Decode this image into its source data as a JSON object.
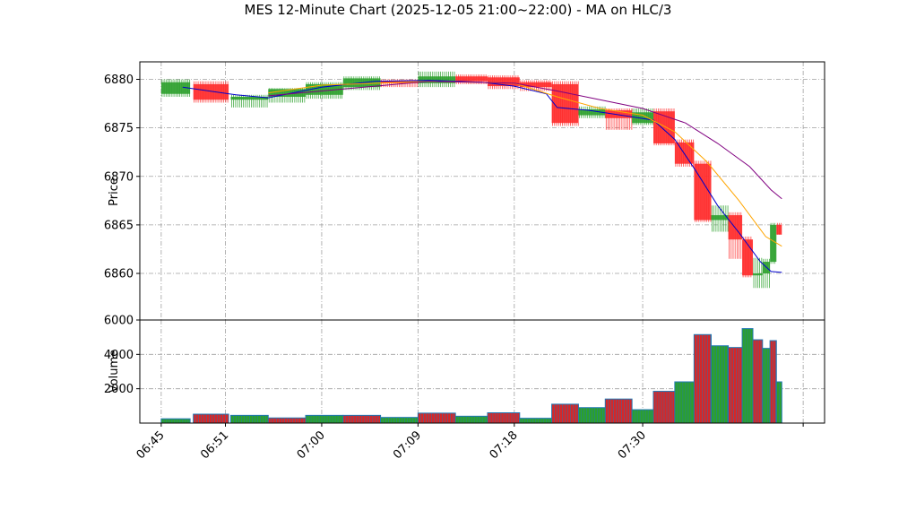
{
  "chart_data": {
    "type": "candlestick",
    "title": "MES 12-Minute Chart (2025-12-05 21:00~22:00) - MA on HLC/3",
    "price_panel": {
      "ylabel": "Price",
      "ylim": [
        6855.2,
        6881.8
      ],
      "yticks": [
        6860,
        6865,
        6870,
        6875,
        6880
      ],
      "grid": true
    },
    "volume_panel": {
      "ylabel": "Volume",
      "ylim": [
        0,
        6000
      ],
      "yticks": [
        2000,
        4000,
        6000
      ],
      "grid": true
    },
    "x_axis": {
      "range": [
        "06:43",
        "07:47"
      ],
      "ticks": [
        "06:45",
        "06:51",
        "07:00",
        "07:09",
        "07:18",
        "07:30"
      ],
      "last_tick_unlabeled": "07:45"
    },
    "colors": {
      "up": "#2ca02c",
      "down": "#ff2a2a",
      "ma_fast": "#0000cc",
      "ma_mid": "#ffa500",
      "ma_slow": "#800080",
      "volume_edge": "#1f77b4",
      "volume_fill": [
        "#2ca02c",
        "#d62728"
      ]
    },
    "bars": [
      {
        "t": "06:45",
        "dur": 2.7,
        "open": 6878.5,
        "high": 6880.0,
        "low": 6878.2,
        "close": 6879.7,
        "volume": 250
      },
      {
        "t": "06:48",
        "dur": 3.3,
        "open": 6879.5,
        "high": 6879.8,
        "low": 6877.6,
        "close": 6877.9,
        "volume": 520
      },
      {
        "t": "06:51.5",
        "dur": 3.5,
        "open": 6877.9,
        "high": 6878.4,
        "low": 6877.1,
        "close": 6878.2,
        "volume": 450
      },
      {
        "t": "06:55",
        "dur": 3.5,
        "open": 6878.2,
        "high": 6879.1,
        "low": 6877.6,
        "close": 6879.0,
        "volume": 300
      },
      {
        "t": "06:58.5",
        "dur": 3.5,
        "open": 6878.4,
        "high": 6879.7,
        "low": 6878.0,
        "close": 6879.5,
        "volume": 450
      },
      {
        "t": "07:02",
        "dur": 3.5,
        "open": 6879.2,
        "high": 6880.3,
        "low": 6878.9,
        "close": 6880.1,
        "volume": 450
      },
      {
        "t": "07:05.5",
        "dur": 3.5,
        "open": 6879.8,
        "high": 6880.0,
        "low": 6879.2,
        "close": 6879.6,
        "volume": 330
      },
      {
        "t": "07:09",
        "dur": 3.5,
        "open": 6879.6,
        "high": 6880.8,
        "low": 6879.2,
        "close": 6880.3,
        "volume": 580
      },
      {
        "t": "07:12.5",
        "dur": 3.0,
        "open": 6880.3,
        "high": 6880.5,
        "low": 6879.5,
        "close": 6879.8,
        "volume": 400
      },
      {
        "t": "07:15.5",
        "dur": 3.0,
        "open": 6880.2,
        "high": 6880.4,
        "low": 6879.0,
        "close": 6879.3,
        "volume": 600
      },
      {
        "t": "07:18.5",
        "dur": 3.0,
        "open": 6879.7,
        "high": 6879.9,
        "low": 6878.8,
        "close": 6879.2,
        "volume": 280
      },
      {
        "t": "07:21.5",
        "dur": 2.5,
        "open": 6879.5,
        "high": 6879.8,
        "low": 6875.2,
        "close": 6875.5,
        "volume": 1100
      },
      {
        "t": "07:24",
        "dur": 2.5,
        "open": 6876.3,
        "high": 6877.2,
        "low": 6876.0,
        "close": 6876.9,
        "volume": 900
      },
      {
        "t": "07:26.5",
        "dur": 2.5,
        "open": 6876.8,
        "high": 6877.0,
        "low": 6874.8,
        "close": 6876.0,
        "volume": 1400
      },
      {
        "t": "07:29",
        "dur": 2.0,
        "open": 6875.5,
        "high": 6877.0,
        "low": 6875.3,
        "close": 6876.6,
        "volume": 780
      },
      {
        "t": "07:31",
        "dur": 2.0,
        "open": 6876.7,
        "high": 6877.0,
        "low": 6873.2,
        "close": 6873.4,
        "volume": 1850
      },
      {
        "t": "07:33",
        "dur": 1.8,
        "open": 6873.5,
        "high": 6873.8,
        "low": 6871.0,
        "close": 6871.3,
        "volume": 2400
      },
      {
        "t": "07:34.8",
        "dur": 1.6,
        "open": 6871.3,
        "high": 6871.6,
        "low": 6865.3,
        "close": 6865.5,
        "volume": 5150
      },
      {
        "t": "07:36.4",
        "dur": 1.6,
        "open": 6865.5,
        "high": 6867.0,
        "low": 6864.3,
        "close": 6866.0,
        "volume": 4500
      },
      {
        "t": "07:38",
        "dur": 1.3,
        "open": 6866.0,
        "high": 6866.3,
        "low": 6861.5,
        "close": 6863.5,
        "volume": 4400
      },
      {
        "t": "07:39.3",
        "dur": 1.0,
        "open": 6863.5,
        "high": 6863.8,
        "low": 6859.6,
        "close": 6859.8,
        "volume": 5500
      },
      {
        "t": "07:40.3",
        "dur": 0.9,
        "open": 6859.8,
        "high": 6861.6,
        "low": 6858.5,
        "close": 6860.0,
        "volume": 4850
      },
      {
        "t": "07:41.2",
        "dur": 0.7,
        "open": 6860.0,
        "high": 6861.5,
        "low": 6858.5,
        "close": 6861.2,
        "volume": 4350
      },
      {
        "t": "07:41.9",
        "dur": 0.6,
        "open": 6861.2,
        "high": 6865.2,
        "low": 6861.0,
        "close": 6865.0,
        "volume": 4800
      },
      {
        "t": "07:42.5",
        "dur": 0.5,
        "open": 6865.0,
        "high": 6865.2,
        "low": 6864.0,
        "close": 6864.0,
        "volume": 2400
      }
    ],
    "moving_averages": [
      {
        "color_key": "ma_fast",
        "points": [
          [
            "06:47",
            6879.2
          ],
          [
            "06:52",
            6878.4
          ],
          [
            "06:55",
            6878.1
          ],
          [
            "07:00",
            6879.2
          ],
          [
            "07:05",
            6879.8
          ],
          [
            "07:10",
            6879.9
          ],
          [
            "07:15",
            6879.7
          ],
          [
            "07:18",
            6879.3
          ],
          [
            "07:21",
            6878.5
          ],
          [
            "07:22",
            6877.1
          ],
          [
            "07:25",
            6876.8
          ],
          [
            "07:28",
            6876.3
          ],
          [
            "07:31",
            6875.8
          ],
          [
            "07:33",
            6873.8
          ],
          [
            "07:35",
            6870.5
          ],
          [
            "07:37",
            6867.0
          ],
          [
            "07:39",
            6864.2
          ],
          [
            "07:41",
            6861.2
          ],
          [
            "07:42",
            6860.2
          ],
          [
            "07:43",
            6860.1
          ]
        ]
      },
      {
        "color_key": "ma_mid",
        "points": [
          [
            "06:55",
            6878.6
          ],
          [
            "07:00",
            6879.4
          ],
          [
            "07:10",
            6879.8
          ],
          [
            "07:18",
            6879.6
          ],
          [
            "07:22",
            6878.2
          ],
          [
            "07:26",
            6877.0
          ],
          [
            "07:30",
            6876.3
          ],
          [
            "07:33",
            6874.6
          ],
          [
            "07:36",
            6871.5
          ],
          [
            "07:39",
            6867.5
          ],
          [
            "07:41.5",
            6863.8
          ],
          [
            "07:43",
            6862.8
          ]
        ]
      },
      {
        "color_key": "ma_slow",
        "points": [
          [
            "06:55",
            6878.3
          ],
          [
            "07:00",
            6878.8
          ],
          [
            "07:10",
            6879.8
          ],
          [
            "07:18",
            6879.6
          ],
          [
            "07:22",
            6878.8
          ],
          [
            "07:26",
            6877.9
          ],
          [
            "07:30",
            6877.0
          ],
          [
            "07:34",
            6875.5
          ],
          [
            "07:37",
            6873.4
          ],
          [
            "07:40",
            6871.0
          ],
          [
            "07:42",
            6868.6
          ],
          [
            "07:43",
            6867.7
          ]
        ]
      }
    ]
  }
}
